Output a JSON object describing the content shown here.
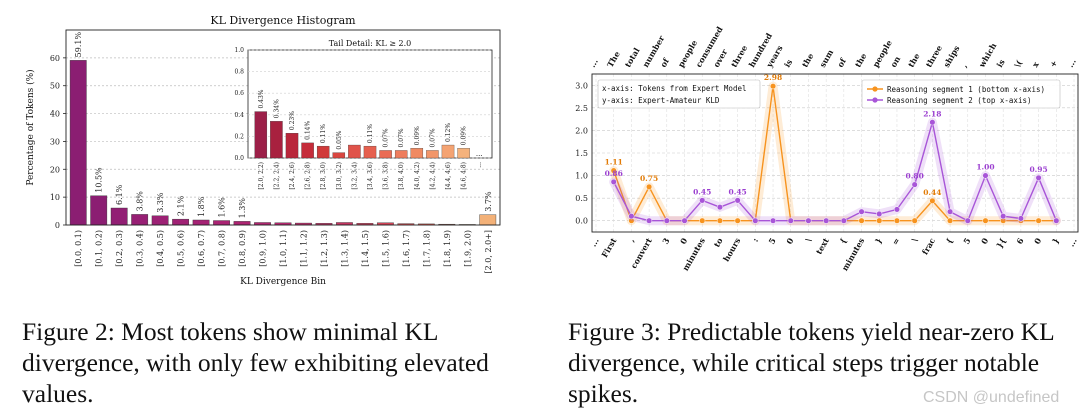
{
  "captions": {
    "fig2": "Figure 2: Most tokens show minimal KL divergence, with only few exhibiting elevated values.",
    "fig3": "Figure 3: Predictable tokens yield near-zero KL divergence, while critical steps trigger notable spikes."
  },
  "watermark": "CSDN @undefined",
  "chart_data": [
    {
      "type": "bar",
      "title": "KL Divergence Histogram",
      "xlabel": "KL Divergence Bin",
      "ylabel": "Percentage of Tokens (%)",
      "ylim": [
        0,
        70
      ],
      "yticks": [
        0,
        10,
        20,
        30,
        40,
        50,
        60
      ],
      "grid": true,
      "categories": [
        "[0.0, 0.1)",
        "[0.1, 0.2)",
        "[0.2, 0.3)",
        "[0.3, 0.4)",
        "[0.4, 0.5)",
        "[0.5, 0.6)",
        "[0.6, 0.7)",
        "[0.7, 0.8)",
        "[0.8, 0.9)",
        "[0.9, 1.0)",
        "[1.0, 1.1)",
        "[1.1, 1.2)",
        "[1.2, 1.3)",
        "[1.3, 1.4)",
        "[1.4, 1.5)",
        "[1.5, 1.6)",
        "[1.6, 1.7)",
        "[1.7, 1.8)",
        "[1.8, 1.9)",
        "[1.9, 2.0)",
        "[2.0, 2.0+]"
      ],
      "values": [
        59.1,
        10.5,
        6.1,
        3.8,
        3.3,
        2.1,
        1.8,
        1.6,
        1.3,
        0.9,
        0.8,
        0.7,
        0.6,
        0.9,
        0.6,
        0.8,
        0.5,
        0.4,
        0.3,
        0.2,
        3.7
      ],
      "value_labels": [
        "59.1%",
        "10.5%",
        "6.1%",
        "3.8%",
        "3.3%",
        "2.1%",
        "1.8%",
        "1.6%",
        "1.3%",
        "",
        "",
        "",
        "",
        "",
        "",
        "",
        "",
        "",
        "",
        "",
        "3.7%"
      ],
      "colors": [
        "#8b1e72",
        "#8b1e72",
        "#921f74",
        "#971f74",
        "#9c2174",
        "#a02174",
        "#a52274",
        "#aa2373",
        "#ad2472",
        "#b22571",
        "#b5276f",
        "#bd2c6b",
        "#c33167",
        "#c83562",
        "#ce3c5d",
        "#d44357",
        "#da4c51",
        "#e0574b",
        "#e76546",
        "#ed8642",
        "#f3b178"
      ],
      "inset": {
        "title": "Tail Detail: KL ≥ 2.0",
        "ylim": [
          0,
          1.0
        ],
        "yticks": [
          "0.0",
          "0.2",
          "0.4",
          "0.6",
          "0.8",
          "1.0"
        ],
        "categories": [
          "[2.0, 2.2)",
          "[2.2, 2.4)",
          "[2.4, 2.6)",
          "[2.6, 2.8)",
          "[2.8, 3.0)",
          "[3.0, 3.2)",
          "[3.2, 3.4)",
          "[3.4, 3.6)",
          "[3.6, 3.8)",
          "[3.8, 4.0)",
          "[4.0, 4.2)",
          "[4.2, 4.4)",
          "[4.4, 4.6)",
          "[4.6, 4.8)",
          "..."
        ],
        "values": [
          0.43,
          0.34,
          0.23,
          0.14,
          0.11,
          0.05,
          0.12,
          0.11,
          0.07,
          0.07,
          0.09,
          0.07,
          0.12,
          0.09,
          null
        ],
        "value_labels": [
          "0.43%",
          "0.34%",
          "0.23%",
          "0.14%",
          "0.11%",
          "0.05%",
          "",
          "0.11%",
          "0.07%",
          "0.07%",
          "0.09%",
          "0.07%",
          "0.12%",
          "0.09%",
          "..."
        ],
        "colors": [
          "#9c1f48",
          "#a8213f",
          "#b9273b",
          "#c52c3a",
          "#d03a3a",
          "#d94640",
          "#e0534a",
          "#e6604f",
          "#ea6c55",
          "#ee7d5e",
          "#f08a62",
          "#f2966a",
          "#f4a372",
          "#f5b27c",
          "#f5b27c"
        ]
      }
    },
    {
      "type": "line",
      "ylim": [
        -0.25,
        3.25
      ],
      "yticks": [
        "0.0",
        "0.5",
        "1.0",
        "1.5",
        "2.0",
        "2.5",
        "3.0"
      ],
      "grid": true,
      "annotation_lines": [
        "x-axis: Tokens from Expert Model",
        "y-axis: Expert-Amateur KLD"
      ],
      "legend_position": "top-right",
      "bottom_tokens": [
        "...",
        "First",
        ",",
        "convert",
        "3",
        "0",
        "minutes",
        "to",
        "hours",
        ":",
        "5",
        "0",
        "\\",
        "text",
        "{",
        "minutes",
        "}",
        "=",
        "\\",
        "frac",
        "{",
        "5",
        "0",
        "}{",
        "6",
        "0",
        "}",
        "..."
      ],
      "top_tokens": [
        "...",
        "The",
        "total",
        "number",
        "of",
        "people",
        "consumed",
        "over",
        "three",
        "hundred",
        "years",
        "is",
        "the",
        "sum",
        "of",
        "the",
        "people",
        "on",
        "the",
        "three",
        "ships",
        ",",
        "which",
        "is",
        "\\(",
        "x",
        "+",
        "..."
      ],
      "series": [
        {
          "name": "Reasoning segment 1 (bottom x-axis)",
          "color": "#f7931e",
          "values": [
            1.11,
            0.0,
            0.75,
            0.0,
            0.0,
            0.0,
            0.0,
            0.0,
            0.0,
            2.98,
            0.0,
            0.0,
            0.0,
            0.0,
            0.0,
            0.0,
            0.0,
            0.0,
            0.44,
            0.0,
            0.0,
            0.0,
            0.0,
            0.0,
            0.0,
            0.0
          ],
          "point_labels": [
            "1.11",
            "",
            "0.75",
            "",
            "",
            "",
            "",
            "",
            "",
            "2.98",
            "",
            "",
            "",
            "",
            "",
            "",
            "",
            "",
            "0.44",
            "",
            "",
            "",
            "",
            "",
            "",
            ""
          ]
        },
        {
          "name": "Reasoning segment 2 (top x-axis)",
          "color": "#a855d8",
          "values": [
            0.86,
            0.1,
            0.0,
            0.0,
            0.0,
            0.45,
            0.3,
            0.45,
            0.0,
            0.0,
            0.0,
            0.0,
            0.0,
            0.0,
            0.2,
            0.15,
            0.25,
            0.8,
            2.18,
            0.2,
            0.0,
            1.0,
            0.1,
            0.05,
            0.95,
            0.0
          ],
          "point_labels": [
            "0.86",
            "",
            "",
            "",
            "",
            "0.45",
            "",
            "0.45",
            "",
            "",
            "",
            "",
            "",
            "",
            "",
            "",
            "",
            "0.80",
            "2.18",
            "",
            "",
            "1.00",
            "",
            "",
            "0.95",
            ""
          ]
        }
      ]
    }
  ]
}
